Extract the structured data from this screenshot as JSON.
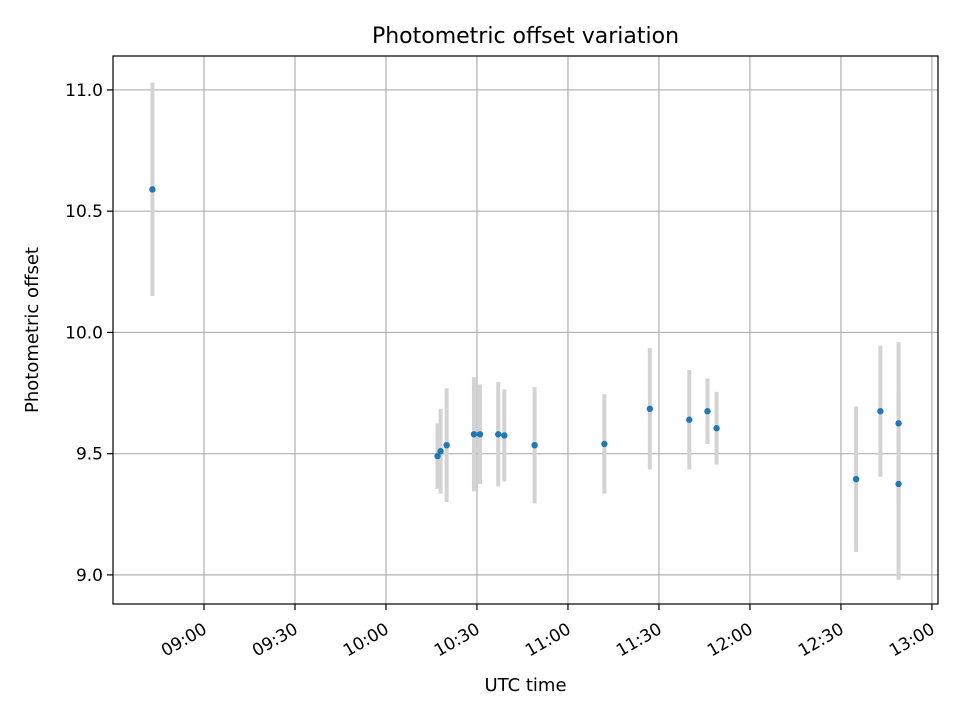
{
  "chart_data": {
    "type": "scatter",
    "title": "Photometric offset variation",
    "xlabel": "UTC time",
    "ylabel": "Photometric offset",
    "xlim": [
      "08:30",
      "13:02"
    ],
    "ylim": [
      8.88,
      11.14
    ],
    "x_ticks": [
      "09:00",
      "09:30",
      "10:00",
      "10:30",
      "11:00",
      "11:30",
      "12:00",
      "12:30",
      "13:00"
    ],
    "y_ticks": [
      "9.0",
      "9.5",
      "10.0",
      "10.5",
      "11.0"
    ],
    "grid": true,
    "colors": {
      "marker": "#1f77b4",
      "errorbar": "#d3d3d3",
      "grid": "#b0b0b0",
      "axes": "#000000"
    },
    "series": [
      {
        "points": [
          {
            "x": "08:43",
            "y": 10.59,
            "err": 0.44
          },
          {
            "x": "10:17",
            "y": 9.49,
            "err": 0.135
          },
          {
            "x": "10:18",
            "y": 9.51,
            "err": 0.175
          },
          {
            "x": "10:20",
            "y": 9.535,
            "err": 0.235
          },
          {
            "x": "10:29",
            "y": 9.58,
            "err": 0.235
          },
          {
            "x": "10:31",
            "y": 9.58,
            "err": 0.205
          },
          {
            "x": "10:37",
            "y": 9.58,
            "err": 0.215
          },
          {
            "x": "10:39",
            "y": 9.575,
            "err": 0.19
          },
          {
            "x": "10:49",
            "y": 9.535,
            "err": 0.24
          },
          {
            "x": "11:12",
            "y": 9.54,
            "err": 0.205
          },
          {
            "x": "11:27",
            "y": 9.685,
            "err": 0.25
          },
          {
            "x": "11:40",
            "y": 9.64,
            "err": 0.205
          },
          {
            "x": "11:46",
            "y": 9.675,
            "err": 0.135
          },
          {
            "x": "11:49",
            "y": 9.605,
            "err": 0.15
          },
          {
            "x": "12:35",
            "y": 9.395,
            "err": 0.3
          },
          {
            "x": "12:43",
            "y": 9.675,
            "err": 0.27
          },
          {
            "x": "12:49",
            "y": 9.625,
            "err": 0.335
          },
          {
            "x": "12:49",
            "y": 9.375,
            "err": 0.395
          }
        ]
      }
    ]
  }
}
